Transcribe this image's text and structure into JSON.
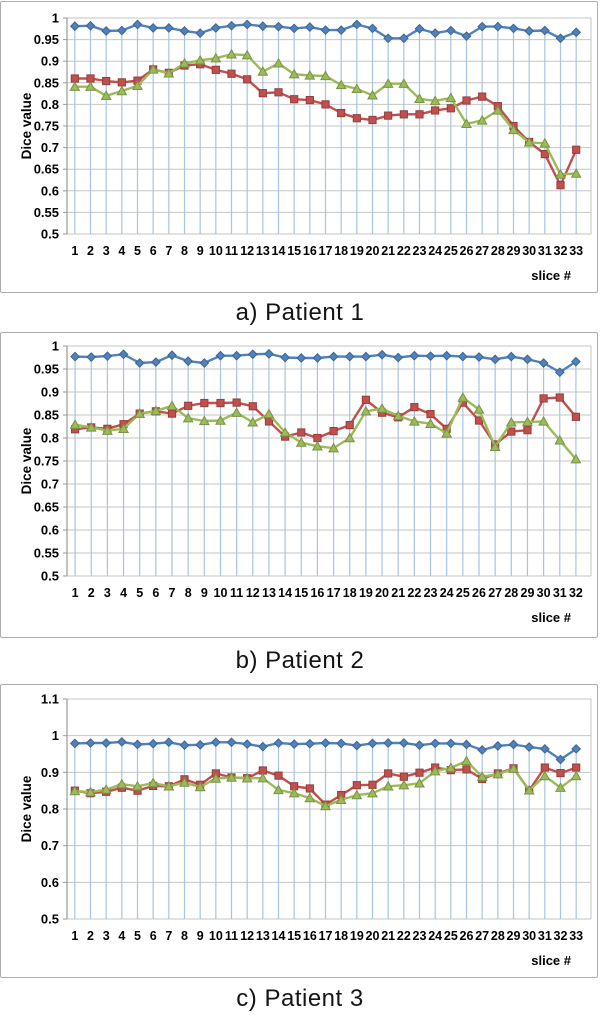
{
  "page": {
    "background": "#ffffff"
  },
  "colors": {
    "series_blue": "#4F81BD",
    "series_red": "#C0504D",
    "series_green": "#9BBB59",
    "drop_line": "#A9C4E1",
    "gridline": "#C6C6C6",
    "axis": "#9A9A9A",
    "panel_border": "#ADADAD"
  },
  "chart_data": [
    {
      "type": "line",
      "caption": "a) Patient 1",
      "xlabel": "slice #",
      "ylabel": "Dice value",
      "ylim": [
        0.5,
        1.0
      ],
      "ytick_step": 0.05,
      "ytick_labels": [
        "1",
        "0.95",
        "0.9",
        "0.85",
        "0.8",
        "0.75",
        "0.7",
        "0.65",
        "0.6",
        "0.55",
        "0.5"
      ],
      "categories": [
        1,
        2,
        3,
        4,
        5,
        6,
        7,
        8,
        9,
        10,
        11,
        12,
        13,
        14,
        15,
        16,
        17,
        18,
        19,
        20,
        21,
        22,
        23,
        24,
        25,
        26,
        27,
        28,
        29,
        30,
        31,
        32,
        33
      ],
      "grid": true,
      "legend": "none",
      "drop_lines": true,
      "series": [
        {
          "name": "blue-diamond",
          "marker": "diamond",
          "color": "#4F81BD",
          "values": [
            0.981,
            0.982,
            0.97,
            0.971,
            0.985,
            0.977,
            0.977,
            0.97,
            0.965,
            0.977,
            0.982,
            0.985,
            0.981,
            0.98,
            0.976,
            0.979,
            0.972,
            0.972,
            0.985,
            0.976,
            0.953,
            0.953,
            0.975,
            0.965,
            0.971,
            0.958,
            0.98,
            0.98,
            0.976,
            0.97,
            0.971,
            0.953,
            0.967
          ]
        },
        {
          "name": "red-square",
          "marker": "square",
          "color": "#C0504D",
          "values": [
            0.86,
            0.86,
            0.854,
            0.851,
            0.855,
            0.881,
            0.873,
            0.89,
            0.893,
            0.88,
            0.871,
            0.858,
            0.826,
            0.828,
            0.812,
            0.81,
            0.8,
            0.78,
            0.768,
            0.764,
            0.774,
            0.777,
            0.777,
            0.786,
            0.791,
            0.809,
            0.818,
            0.796,
            0.75,
            0.713,
            0.685,
            0.613,
            0.695
          ]
        },
        {
          "name": "green-triangle",
          "marker": "triangle",
          "color": "#9BBB59",
          "values": [
            0.841,
            0.841,
            0.82,
            0.831,
            0.843,
            0.881,
            0.872,
            0.895,
            0.902,
            0.907,
            0.916,
            0.914,
            0.876,
            0.895,
            0.87,
            0.867,
            0.866,
            0.845,
            0.836,
            0.821,
            0.848,
            0.848,
            0.813,
            0.808,
            0.815,
            0.755,
            0.763,
            0.786,
            0.741,
            0.712,
            0.71,
            0.638,
            0.64
          ]
        }
      ]
    },
    {
      "type": "line",
      "caption": "b) Patient 2",
      "xlabel": "slice #",
      "ylabel": "Dice value",
      "ylim": [
        0.5,
        1.0
      ],
      "ytick_step": 0.05,
      "ytick_labels": [
        "1",
        "0.95",
        "0.9",
        "0.85",
        "0.8",
        "0.75",
        "0.7",
        "0.65",
        "0.6",
        "0.55",
        "0.5"
      ],
      "categories": [
        1,
        2,
        3,
        4,
        5,
        6,
        7,
        8,
        9,
        10,
        11,
        12,
        13,
        14,
        15,
        16,
        17,
        18,
        19,
        20,
        21,
        22,
        23,
        24,
        25,
        26,
        27,
        28,
        29,
        30,
        31,
        32
      ],
      "grid": true,
      "legend": "none",
      "drop_lines": true,
      "series": [
        {
          "name": "blue-diamond",
          "marker": "diamond",
          "color": "#4F81BD",
          "values": [
            0.977,
            0.976,
            0.978,
            0.982,
            0.963,
            0.965,
            0.98,
            0.967,
            0.963,
            0.979,
            0.979,
            0.982,
            0.983,
            0.975,
            0.974,
            0.974,
            0.977,
            0.977,
            0.977,
            0.981,
            0.975,
            0.979,
            0.978,
            0.979,
            0.977,
            0.976,
            0.971,
            0.977,
            0.971,
            0.963,
            0.943,
            0.966
          ]
        },
        {
          "name": "red-square",
          "marker": "square",
          "color": "#C0504D",
          "values": [
            0.819,
            0.823,
            0.82,
            0.83,
            0.853,
            0.858,
            0.853,
            0.87,
            0.876,
            0.876,
            0.877,
            0.869,
            0.836,
            0.803,
            0.812,
            0.8,
            0.815,
            0.828,
            0.883,
            0.855,
            0.845,
            0.867,
            0.852,
            0.82,
            0.877,
            0.838,
            0.786,
            0.814,
            0.817,
            0.886,
            0.888,
            0.846
          ]
        },
        {
          "name": "green-triangle",
          "marker": "triangle",
          "color": "#9BBB59",
          "values": [
            0.829,
            0.823,
            0.816,
            0.82,
            0.853,
            0.859,
            0.87,
            0.843,
            0.837,
            0.838,
            0.855,
            0.834,
            0.852,
            0.812,
            0.79,
            0.782,
            0.778,
            0.8,
            0.858,
            0.864,
            0.848,
            0.836,
            0.831,
            0.81,
            0.888,
            0.862,
            0.781,
            0.834,
            0.835,
            0.836,
            0.795,
            0.754
          ]
        }
      ]
    },
    {
      "type": "line",
      "caption": "c) Patient 3",
      "xlabel": "slice #",
      "ylabel": "Dice value",
      "ylim": [
        0.5,
        1.1
      ],
      "ytick_step": 0.1,
      "ytick_labels": [
        "1.1",
        "1",
        "0.9",
        "0.8",
        "0.7",
        "0.6",
        "0.5"
      ],
      "categories": [
        1,
        2,
        3,
        4,
        5,
        6,
        7,
        8,
        9,
        10,
        11,
        12,
        13,
        14,
        15,
        16,
        17,
        18,
        19,
        20,
        21,
        22,
        23,
        24,
        25,
        26,
        27,
        28,
        29,
        30,
        31,
        32,
        33
      ],
      "grid": true,
      "legend": "none",
      "drop_lines": true,
      "series": [
        {
          "name": "blue-diamond",
          "marker": "diamond",
          "color": "#4F81BD",
          "values": [
            0.979,
            0.98,
            0.98,
            0.983,
            0.976,
            0.978,
            0.982,
            0.974,
            0.975,
            0.982,
            0.982,
            0.977,
            0.97,
            0.98,
            0.977,
            0.978,
            0.98,
            0.979,
            0.973,
            0.979,
            0.98,
            0.98,
            0.974,
            0.979,
            0.979,
            0.976,
            0.961,
            0.972,
            0.976,
            0.969,
            0.964,
            0.935,
            0.964
          ]
        },
        {
          "name": "red-square",
          "marker": "square",
          "color": "#C0504D",
          "values": [
            0.85,
            0.843,
            0.847,
            0.858,
            0.85,
            0.863,
            0.862,
            0.881,
            0.866,
            0.897,
            0.886,
            0.884,
            0.905,
            0.891,
            0.862,
            0.856,
            0.812,
            0.838,
            0.865,
            0.866,
            0.897,
            0.888,
            0.899,
            0.913,
            0.906,
            0.908,
            0.882,
            0.897,
            0.911,
            0.851,
            0.913,
            0.898,
            0.913
          ]
        },
        {
          "name": "green-triangle",
          "marker": "triangle",
          "color": "#9BBB59",
          "values": [
            0.849,
            0.846,
            0.853,
            0.868,
            0.862,
            0.871,
            0.862,
            0.872,
            0.86,
            0.883,
            0.886,
            0.884,
            0.884,
            0.852,
            0.843,
            0.83,
            0.808,
            0.825,
            0.838,
            0.843,
            0.862,
            0.865,
            0.87,
            0.903,
            0.912,
            0.931,
            0.888,
            0.895,
            0.91,
            0.851,
            0.89,
            0.858,
            0.89
          ]
        }
      ]
    }
  ]
}
